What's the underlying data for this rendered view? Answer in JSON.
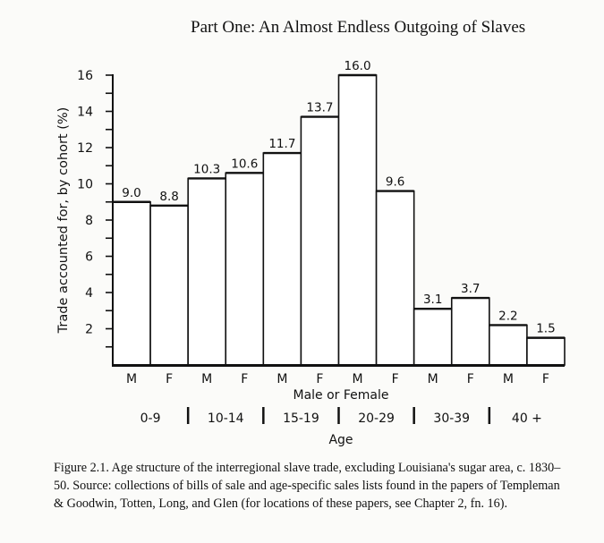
{
  "header": {
    "running_title": "Part One: An Almost Endless Outgoing of Slaves"
  },
  "caption": "Figure 2.1. Age structure of the interregional slave trade, excluding Louisiana's sugar area, c. 1830–50. Source: collections of bills of sale and age-specific sales lists found in the papers of Templeman & Goodwin, Totten, Long, and Glen (for locations of these papers, see Chapter 2, fn. 16).",
  "chart_data": {
    "type": "bar",
    "title": "",
    "ylabel": "Trade accounted for, by cohort (%)",
    "xlabel": "Male or Female",
    "xlabel2": "Age",
    "ylim": [
      0,
      16
    ],
    "yticks": [
      "2",
      "4",
      "6",
      "8",
      "10",
      "12",
      "14",
      "16"
    ],
    "categories": [
      "M",
      "F",
      "M",
      "F",
      "M",
      "F",
      "M",
      "F",
      "M",
      "F",
      "M",
      "F"
    ],
    "age_groups": [
      "0-9",
      "10-14",
      "15-19",
      "20-29",
      "30-39",
      "40 +"
    ],
    "values": [
      9.0,
      8.8,
      10.3,
      10.6,
      11.7,
      13.7,
      16.0,
      9.6,
      3.1,
      3.7,
      2.2,
      1.5
    ],
    "value_labels": [
      "9.0",
      "8.8",
      "10.3",
      "10.6",
      "11.7",
      "13.7",
      "16.0",
      "9.6",
      "3.1",
      "3.7",
      "2.2",
      "1.5"
    ],
    "grid": false,
    "legend": "none"
  }
}
